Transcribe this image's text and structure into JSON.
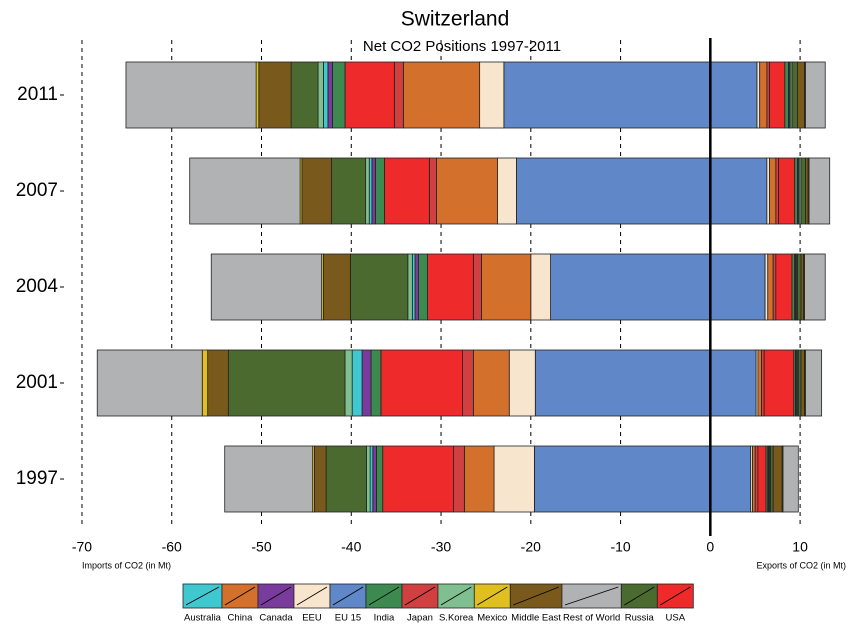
{
  "chart_data": {
    "type": "diverging-stacked-bar",
    "title": "Switzerland",
    "subtitle": "Net CO2 Positions 1997-2011",
    "xlabel_left": "Imports of CO2 (in Mt)",
    "xlabel_right": "Exports of CO2 (in Mt)",
    "categories": [
      "2011",
      "2007",
      "2004",
      "2001",
      "1997"
    ],
    "xlim": [
      -71,
      14
    ],
    "xticks": [
      -70,
      -60,
      -50,
      -40,
      -30,
      -20,
      -10,
      0,
      10
    ],
    "grid": true,
    "series": [
      {
        "name": "Australia",
        "color": "#40c8d0",
        "imports": [
          -0.5,
          -0.3,
          -0.3,
          -1.1,
          -0.3
        ],
        "exports": [
          0.1,
          0.1,
          0.1,
          0.1,
          0.1
        ]
      },
      {
        "name": "China",
        "color": "#d2702c",
        "imports": [
          -8.5,
          -6.8,
          -5.5,
          -4.0,
          -3.3
        ],
        "exports": [
          0.8,
          0.7,
          0.6,
          0.4,
          0.3
        ]
      },
      {
        "name": "Canada",
        "color": "#7a3c9c",
        "imports": [
          -0.5,
          -0.4,
          -0.4,
          -1.0,
          -0.4
        ],
        "exports": [
          0.1,
          0.1,
          0.1,
          0.1,
          0.1
        ]
      },
      {
        "name": "EEU",
        "color": "#f7e5cd",
        "imports": [
          -2.7,
          -2.1,
          -2.2,
          -2.9,
          -4.5
        ],
        "exports": [
          0.3,
          0.3,
          0.3,
          0.2,
          0.2
        ]
      },
      {
        "name": "EU 15",
        "color": "#6088c8",
        "imports": [
          -23.0,
          -21.6,
          -17.8,
          -19.5,
          -19.6
        ],
        "exports": [
          5.2,
          6.3,
          6.1,
          5.1,
          4.5
        ]
      },
      {
        "name": "India",
        "color": "#3c8a50",
        "imports": [
          -1.4,
          -1.0,
          -1.0,
          -1.1,
          -0.7
        ],
        "exports": [
          0.4,
          0.3,
          0.3,
          0.2,
          0.2
        ]
      },
      {
        "name": "Japan",
        "color": "#d04040",
        "imports": [
          -1.0,
          -0.8,
          -0.9,
          -1.2,
          -1.2
        ],
        "exports": [
          0.3,
          0.3,
          0.3,
          0.3,
          0.3
        ]
      },
      {
        "name": "S.Korea",
        "color": "#80c090",
        "imports": [
          -0.6,
          -0.4,
          -0.5,
          -0.8,
          -0.4
        ],
        "exports": [
          0.2,
          0.2,
          0.1,
          0.1,
          0.1
        ]
      },
      {
        "name": "Mexico",
        "color": "#e0c020",
        "imports": [
          -0.3,
          -0.2,
          -0.2,
          -0.6,
          -0.2
        ],
        "exports": [
          0.1,
          0.1,
          0.1,
          0.1,
          0.1
        ]
      },
      {
        "name": "Middle East",
        "color": "#7a5a1c",
        "imports": [
          -3.6,
          -3.3,
          -3.0,
          -2.3,
          -1.3
        ],
        "exports": [
          0.8,
          0.3,
          0.3,
          0.4,
          1.0
        ]
      },
      {
        "name": "Rest of World",
        "color": "#b0b2b4",
        "imports": [
          -14.5,
          -12.3,
          -12.3,
          -11.7,
          -9.8
        ],
        "exports": [
          2.2,
          2.3,
          2.3,
          1.8,
          1.7
        ]
      },
      {
        "name": "Russia",
        "color": "#4a6a30",
        "imports": [
          -3.0,
          -3.8,
          -6.4,
          -13.0,
          -4.5
        ],
        "exports": [
          0.6,
          0.5,
          0.4,
          0.3,
          0.3
        ]
      },
      {
        "name": "USA",
        "color": "#ee2a2a",
        "imports": [
          -5.5,
          -5.0,
          -5.1,
          -9.1,
          -7.9
        ],
        "exports": [
          1.7,
          1.8,
          1.8,
          3.3,
          0.9
        ]
      }
    ]
  }
}
